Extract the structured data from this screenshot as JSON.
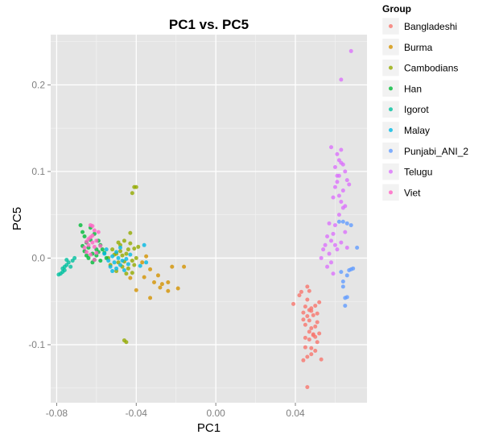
{
  "chart_data": {
    "type": "scatter",
    "title": "PC1 vs. PC5",
    "xlabel": "PC1",
    "ylabel": "PC5",
    "xlim": [
      -0.083,
      0.076
    ],
    "ylim": [
      -0.167,
      0.258
    ],
    "x_ticks": [
      -0.08,
      -0.04,
      0.0,
      0.04
    ],
    "x_tick_labels": [
      "-0.08",
      "-0.04",
      "0.00",
      "0.04"
    ],
    "y_ticks": [
      -0.1,
      0.0,
      0.1,
      0.2
    ],
    "y_tick_labels": [
      "-0.1",
      "0.0",
      "0.1",
      "0.2"
    ],
    "grid": true,
    "legend_position": "right",
    "legend_title": "Group",
    "panel_color": "#E5E5E5",
    "series": [
      {
        "name": "Bangladeshi",
        "color": "#F8766D",
        "points": [
          [
            0.046,
            -0.149
          ],
          [
            0.039,
            -0.053
          ],
          [
            0.042,
            -0.043
          ],
          [
            0.043,
            -0.039
          ],
          [
            0.044,
            -0.063
          ],
          [
            0.045,
            -0.056
          ],
          [
            0.045,
            -0.077
          ],
          [
            0.046,
            -0.048
          ],
          [
            0.046,
            -0.067
          ],
          [
            0.047,
            -0.072
          ],
          [
            0.047,
            -0.085
          ],
          [
            0.047,
            -0.094
          ],
          [
            0.048,
            -0.061
          ],
          [
            0.048,
            -0.081
          ],
          [
            0.049,
            -0.066
          ],
          [
            0.049,
            -0.088
          ],
          [
            0.05,
            -0.055
          ],
          [
            0.05,
            -0.091
          ],
          [
            0.051,
            -0.074
          ],
          [
            0.044,
            -0.118
          ],
          [
            0.045,
            -0.092
          ],
          [
            0.046,
            -0.114
          ],
          [
            0.048,
            -0.104
          ],
          [
            0.048,
            -0.111
          ],
          [
            0.049,
            -0.089
          ],
          [
            0.05,
            -0.107
          ],
          [
            0.051,
            -0.064
          ],
          [
            0.052,
            -0.087
          ],
          [
            0.052,
            -0.051
          ],
          [
            0.053,
            -0.117
          ],
          [
            0.046,
            -0.033
          ],
          [
            0.047,
            -0.038
          ],
          [
            0.045,
            -0.103
          ],
          [
            0.05,
            -0.079
          ],
          [
            0.051,
            -0.097
          ],
          [
            0.044,
            -0.071
          ],
          [
            0.048,
            -0.058
          ],
          [
            0.047,
            -0.06
          ]
        ]
      },
      {
        "name": "Burma",
        "color": "#D39200",
        "points": [
          [
            -0.037,
            -0.005
          ],
          [
            -0.035,
            0.002
          ],
          [
            -0.033,
            -0.013
          ],
          [
            -0.031,
            -0.028
          ],
          [
            -0.028,
            -0.034
          ],
          [
            -0.024,
            -0.028
          ],
          [
            -0.024,
            -0.038
          ],
          [
            -0.022,
            -0.01
          ],
          [
            -0.019,
            -0.035
          ],
          [
            -0.016,
            -0.01
          ],
          [
            -0.04,
            -0.037
          ],
          [
            -0.033,
            -0.046
          ],
          [
            -0.036,
            -0.022
          ],
          [
            -0.043,
            -0.023
          ],
          [
            -0.029,
            -0.02
          ],
          [
            -0.027,
            -0.03
          ]
        ]
      },
      {
        "name": "Cambodians",
        "color": "#93AA00",
        "points": [
          [
            -0.045,
            -0.097
          ],
          [
            -0.046,
            -0.095
          ],
          [
            -0.041,
            0.082
          ],
          [
            -0.04,
            0.082
          ],
          [
            -0.042,
            0.075
          ],
          [
            -0.054,
            0.0
          ],
          [
            -0.052,
            0.01
          ],
          [
            -0.05,
            0.005
          ],
          [
            -0.049,
            -0.005
          ],
          [
            -0.048,
            0.015
          ],
          [
            -0.047,
            -0.01
          ],
          [
            -0.046,
            0.02
          ],
          [
            -0.045,
            0.005
          ],
          [
            -0.044,
            -0.012
          ],
          [
            -0.043,
            0.017
          ],
          [
            -0.042,
            -0.003
          ],
          [
            -0.041,
            0.011
          ],
          [
            -0.04,
            0.0
          ],
          [
            -0.039,
            0.013
          ],
          [
            -0.047,
            0.003
          ],
          [
            -0.045,
            -0.018
          ],
          [
            -0.043,
            0.029
          ],
          [
            -0.05,
            -0.015
          ],
          [
            -0.042,
            -0.017
          ],
          [
            -0.048,
            0.008
          ],
          [
            -0.044,
            0.01
          ],
          [
            -0.046,
            -0.004
          ],
          [
            -0.041,
            -0.008
          ],
          [
            -0.049,
            0.018
          ],
          [
            -0.053,
            -0.008
          ],
          [
            -0.051,
            0.004
          ]
        ]
      },
      {
        "name": "Han",
        "color": "#00BA38",
        "points": [
          [
            -0.067,
            0.03
          ],
          [
            -0.066,
            0.025
          ],
          [
            -0.065,
            0.018
          ],
          [
            -0.064,
            0.012
          ],
          [
            -0.063,
            0.035
          ],
          [
            -0.062,
            0.005
          ],
          [
            -0.061,
            0.028
          ],
          [
            -0.06,
            0.003
          ],
          [
            -0.059,
            0.02
          ],
          [
            -0.058,
            -0.003
          ],
          [
            -0.057,
            0.01
          ],
          [
            -0.056,
            0.006
          ],
          [
            -0.055,
            0.0
          ],
          [
            -0.068,
            0.038
          ],
          [
            -0.066,
            0.008
          ],
          [
            -0.064,
            0.0
          ],
          [
            -0.062,
            -0.005
          ],
          [
            -0.06,
            0.01
          ],
          [
            -0.058,
            0.015
          ],
          [
            -0.063,
            0.021
          ],
          [
            -0.065,
            0.003
          ],
          [
            -0.061,
            -0.002
          ],
          [
            -0.067,
            0.014
          ],
          [
            -0.059,
            0.007
          ]
        ]
      },
      {
        "name": "Igorot",
        "color": "#00C19F",
        "points": [
          [
            -0.079,
            -0.019
          ],
          [
            -0.078,
            -0.018
          ],
          [
            -0.077,
            -0.016
          ],
          [
            -0.076,
            -0.014
          ],
          [
            -0.076,
            -0.01
          ],
          [
            -0.075,
            -0.008
          ],
          [
            -0.074,
            -0.005
          ],
          [
            -0.073,
            -0.01
          ],
          [
            -0.072,
            -0.003
          ],
          [
            -0.071,
            0.0
          ],
          [
            -0.077,
            -0.012
          ],
          [
            -0.075,
            -0.002
          ]
        ]
      },
      {
        "name": "Malay",
        "color": "#00B9E3",
        "points": [
          [
            -0.056,
            0.005
          ],
          [
            -0.054,
            -0.003
          ],
          [
            -0.053,
            -0.01
          ],
          [
            -0.052,
            0.002
          ],
          [
            -0.051,
            -0.005
          ],
          [
            -0.05,
            -0.012
          ],
          [
            -0.049,
            0.0
          ],
          [
            -0.048,
            -0.008
          ],
          [
            -0.047,
            -0.003
          ],
          [
            -0.046,
            -0.014
          ],
          [
            -0.044,
            -0.007
          ],
          [
            -0.038,
            -0.009
          ],
          [
            -0.035,
            -0.005
          ],
          [
            -0.036,
            0.015
          ],
          [
            -0.055,
            0.01
          ],
          [
            -0.05,
            0.007
          ],
          [
            -0.045,
            -0.001
          ],
          [
            -0.043,
            0.004
          ],
          [
            -0.052,
            -0.015
          ],
          [
            -0.048,
            0.012
          ]
        ]
      },
      {
        "name": "Punjabi_ANI_2",
        "color": "#619CFF",
        "points": [
          [
            0.062,
            0.042
          ],
          [
            0.064,
            0.042
          ],
          [
            0.066,
            0.04
          ],
          [
            0.068,
            0.038
          ],
          [
            0.069,
            -0.012
          ],
          [
            0.068,
            -0.013
          ],
          [
            0.067,
            -0.014
          ],
          [
            0.064,
            -0.027
          ],
          [
            0.064,
            -0.033
          ],
          [
            0.065,
            -0.046
          ],
          [
            0.065,
            -0.055
          ],
          [
            0.071,
            0.012
          ],
          [
            0.063,
            -0.016
          ],
          [
            0.066,
            -0.045
          ],
          [
            0.066,
            -0.02
          ]
        ]
      },
      {
        "name": "Telugu",
        "color": "#DB72FB",
        "points": [
          [
            0.068,
            0.239
          ],
          [
            0.063,
            0.206
          ],
          [
            0.058,
            0.128
          ],
          [
            0.06,
            0.105
          ],
          [
            0.061,
            0.12
          ],
          [
            0.062,
            0.113
          ],
          [
            0.063,
            0.125
          ],
          [
            0.064,
            0.108
          ],
          [
            0.065,
            0.1
          ],
          [
            0.066,
            0.09
          ],
          [
            0.067,
            0.085
          ],
          [
            0.062,
            0.095
          ],
          [
            0.061,
            0.088
          ],
          [
            0.06,
            0.082
          ],
          [
            0.064,
            0.078
          ],
          [
            0.059,
            0.07
          ],
          [
            0.062,
            0.072
          ],
          [
            0.063,
            0.065
          ],
          [
            0.064,
            0.058
          ],
          [
            0.065,
            0.06
          ],
          [
            0.062,
            0.05
          ],
          [
            0.06,
            0.038
          ],
          [
            0.057,
            0.04
          ],
          [
            0.056,
            0.025
          ],
          [
            0.058,
            0.02
          ],
          [
            0.059,
            0.028
          ],
          [
            0.06,
            0.015
          ],
          [
            0.061,
            0.01
          ],
          [
            0.055,
            0.015
          ],
          [
            0.057,
            0.005
          ],
          [
            0.054,
            0.01
          ],
          [
            0.053,
            0.0
          ],
          [
            0.058,
            -0.005
          ],
          [
            0.056,
            -0.01
          ],
          [
            0.059,
            -0.018
          ],
          [
            0.063,
            0.018
          ],
          [
            0.065,
            0.03
          ],
          [
            0.066,
            0.012
          ],
          [
            0.063,
            0.11
          ],
          [
            0.061,
            0.095
          ]
        ]
      },
      {
        "name": "Viet",
        "color": "#FF61C3",
        "points": [
          [
            -0.063,
            0.038
          ],
          [
            -0.062,
            0.037
          ],
          [
            -0.061,
            0.032
          ],
          [
            -0.063,
            0.024
          ],
          [
            -0.062,
            0.018
          ],
          [
            -0.061,
            0.013
          ],
          [
            -0.06,
            0.006
          ],
          [
            -0.064,
            0.015
          ],
          [
            -0.065,
            0.007
          ],
          [
            -0.066,
            0.012
          ],
          [
            -0.06,
            0.02
          ],
          [
            -0.059,
            0.03
          ],
          [
            -0.058,
            0.014
          ],
          [
            -0.063,
            0.004
          ],
          [
            -0.061,
            -0.002
          ],
          [
            -0.064,
            0.022
          ],
          [
            -0.062,
            0.026
          ],
          [
            -0.065,
            0.019
          ]
        ]
      }
    ]
  }
}
